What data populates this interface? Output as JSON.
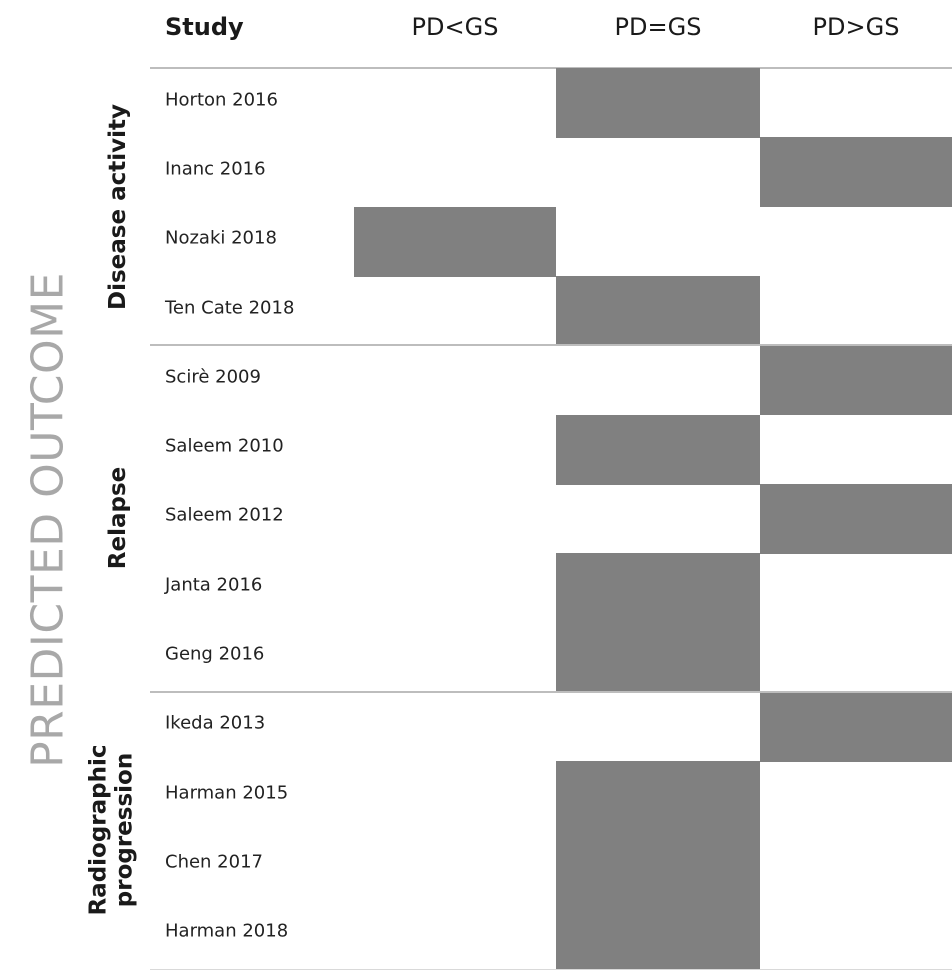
{
  "side_title": "PREDICTED OUTCOME",
  "chart_data": {
    "type": "table",
    "header": {
      "study": "Study",
      "columns": [
        "PD<GS",
        "PD=GS",
        "PD>GS"
      ]
    },
    "groups": [
      {
        "label_lines": [
          "Disease activity"
        ],
        "start": 0,
        "count": 4
      },
      {
        "label_lines": [
          "Relapse"
        ],
        "start": 4,
        "count": 5
      },
      {
        "label_lines": [
          "Radiographic",
          "progression"
        ],
        "start": 9,
        "count": 4
      }
    ],
    "rows": [
      {
        "study": "Horton 2016",
        "category": "PD=GS"
      },
      {
        "study": "Inanc 2016",
        "category": "PD>GS"
      },
      {
        "study": "Nozaki 2018",
        "category": "PD<GS"
      },
      {
        "study": "Ten Cate 2018",
        "category": "PD=GS"
      },
      {
        "study": "Scirè 2009",
        "category": "PD>GS"
      },
      {
        "study": "Saleem 2010",
        "category": "PD=GS"
      },
      {
        "study": "Saleem 2012",
        "category": "PD>GS"
      },
      {
        "study": "Janta 2016",
        "category": "PD=GS"
      },
      {
        "study": "Geng 2016",
        "category": "PD=GS"
      },
      {
        "study": "Ikeda 2013",
        "category": "PD>GS"
      },
      {
        "study": "Harman 2015",
        "category": "PD=GS"
      },
      {
        "study": "Chen 2017",
        "category": "PD=GS"
      },
      {
        "study": "Harman 2018",
        "category": "PD=GS"
      }
    ],
    "fill_color": "#808080"
  }
}
